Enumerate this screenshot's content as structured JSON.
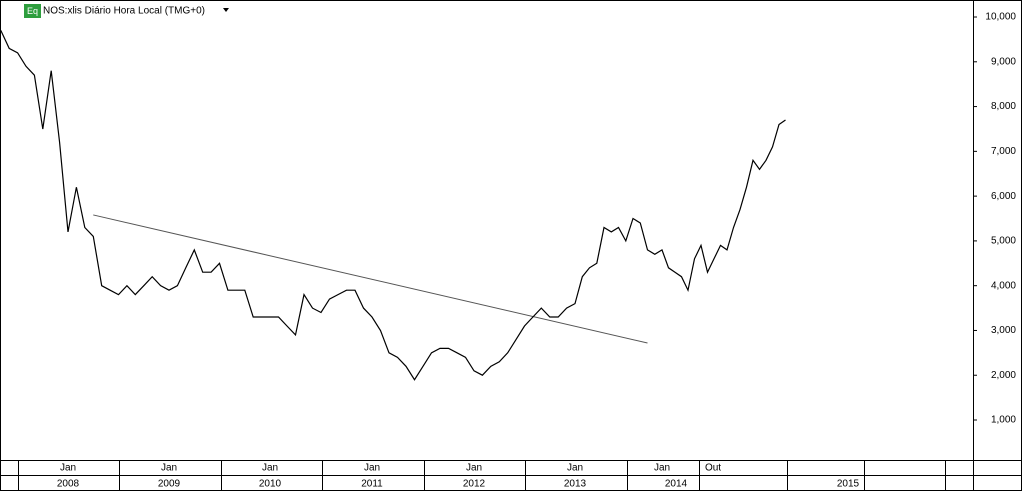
{
  "chart_data": {
    "type": "line",
    "title": "NOS:xlis Diário Hora Local (TMG+0)",
    "badge": "Eq",
    "color": "#000000",
    "x": [
      "2007-05",
      "2007-06",
      "2007-07",
      "2007-08",
      "2007-09",
      "2007-10",
      "2007-11",
      "2007-12",
      "2008-01",
      "2008-02",
      "2008-03",
      "2008-04",
      "2008-05",
      "2008-06",
      "2008-07",
      "2008-08",
      "2008-09",
      "2008-10",
      "2008-11",
      "2008-12",
      "2009-01",
      "2009-02",
      "2009-03",
      "2009-04",
      "2009-05",
      "2009-06",
      "2009-07",
      "2009-08",
      "2009-09",
      "2009-10",
      "2009-11",
      "2009-12",
      "2010-01",
      "2010-02",
      "2010-03",
      "2010-04",
      "2010-05",
      "2010-06",
      "2010-07",
      "2010-08",
      "2010-09",
      "2010-10",
      "2010-11",
      "2010-12",
      "2011-01",
      "2011-02",
      "2011-03",
      "2011-04",
      "2011-05",
      "2011-06",
      "2011-07",
      "2011-08",
      "2011-09",
      "2011-10",
      "2011-11",
      "2011-12",
      "2012-01",
      "2012-02",
      "2012-03",
      "2012-04",
      "2012-05",
      "2012-06",
      "2012-07",
      "2012-08",
      "2012-09",
      "2012-10",
      "2012-11",
      "2012-12",
      "2013-01",
      "2013-02",
      "2013-03",
      "2013-04",
      "2013-05",
      "2013-06",
      "2013-07",
      "2013-08",
      "2013-09",
      "2013-10",
      "2013-11",
      "2013-12",
      "2014-01",
      "2014-02",
      "2014-03",
      "2014-04",
      "2014-05",
      "2014-06",
      "2014-07",
      "2014-08",
      "2014-09",
      "2014-10",
      "2014-11",
      "2014-12",
      "2015-01",
      "2015-02",
      "2015-03",
      "2015-04",
      "2015-05",
      "2015-06",
      "2015-07",
      "2015-08"
    ],
    "values": [
      9700,
      9300,
      9200,
      8900,
      8700,
      7500,
      8800,
      7200,
      5200,
      6200,
      5300,
      5100,
      4000,
      3900,
      3800,
      4000,
      3800,
      4000,
      4200,
      4000,
      3900,
      4000,
      4400,
      4800,
      4300,
      4300,
      4500,
      3900,
      3900,
      3900,
      3300,
      3300,
      3300,
      3300,
      3100,
      2900,
      3800,
      3500,
      3400,
      3700,
      3800,
      3900,
      3900,
      3500,
      3300,
      3000,
      2500,
      2400,
      2200,
      1900,
      2200,
      2500,
      2600,
      2600,
      2500,
      2400,
      2100,
      2000,
      2200,
      2300,
      2500,
      2800,
      3100,
      3300,
      3500,
      3300,
      3300,
      3500,
      3600,
      4200,
      4400,
      4500,
      5300,
      5200,
      5300,
      5000,
      5500,
      5400,
      4800,
      4700,
      4800,
      4400,
      4300,
      4200,
      3900,
      4600,
      4900,
      4300,
      4600,
      4900,
      4800,
      5300,
      5700,
      6200,
      6800,
      6600,
      6800,
      7100,
      7600,
      7700
    ],
    "trendline": {
      "x": [
        "2008-04",
        "2013-11"
      ],
      "values": [
        5580,
        2720
      ]
    },
    "ylim": [
      107,
      10380
    ],
    "yticks": [
      {
        "value": 1000,
        "label": "1,000"
      },
      {
        "value": 2000,
        "label": "2,000"
      },
      {
        "value": 3000,
        "label": "3,000"
      },
      {
        "value": 4000,
        "label": "4,000"
      },
      {
        "value": 5000,
        "label": "5,000"
      },
      {
        "value": 6000,
        "label": "6,000"
      },
      {
        "value": 7000,
        "label": "7,000"
      },
      {
        "value": 8000,
        "label": "8,000"
      },
      {
        "value": 9000,
        "label": "9,000"
      },
      {
        "value": 10000,
        "label": "10,000"
      }
    ],
    "x_month_labels": [
      "Jan",
      "Jan",
      "Jan",
      "Jan",
      "Jan",
      "Jan",
      "Jan",
      "Out"
    ],
    "x_year_labels": [
      "2008",
      "2009",
      "2010",
      "2011",
      "2012",
      "2013",
      "2014",
      "2015"
    ]
  }
}
